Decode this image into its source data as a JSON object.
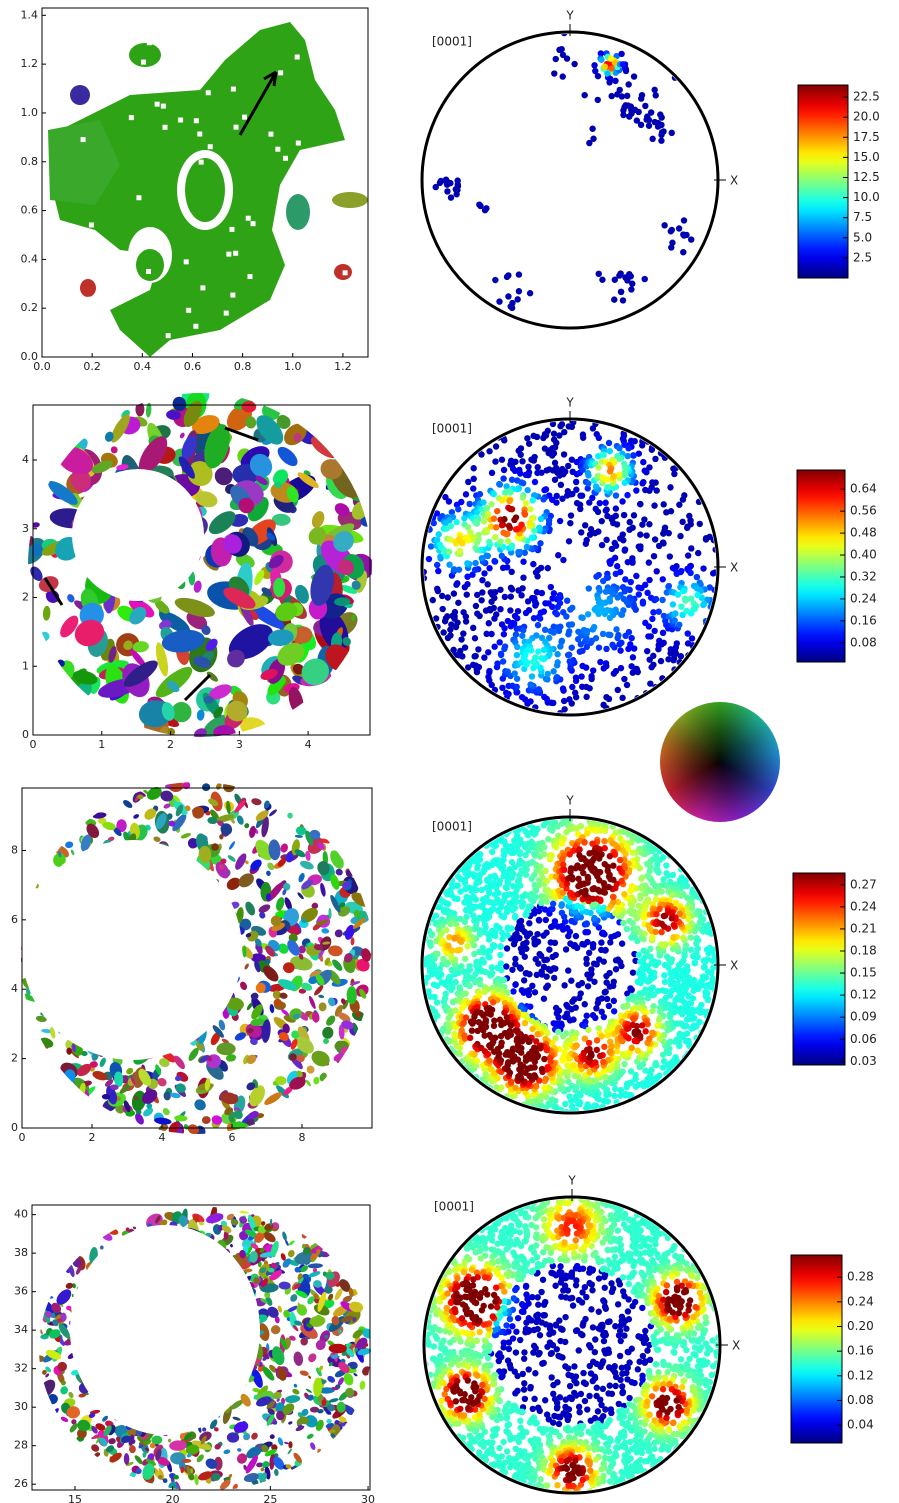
{
  "chart_data": [
    {
      "type": "orientation-map",
      "xlim": [
        0,
        1.3
      ],
      "ylim": [
        0,
        1.43
      ],
      "xticks": [
        {
          "value": 0,
          "label": "0.0"
        },
        0.2,
        0.4,
        0.6,
        0.8,
        {
          "value": 1,
          "label": "1.0"
        },
        1.2
      ],
      "yticks": [
        {
          "value": 0,
          "label": "0.0"
        },
        0.2,
        0.4,
        0.6,
        0.8,
        {
          "value": 1,
          "label": "1.0"
        },
        1.2,
        1.4
      ]
    },
    {
      "type": "pole-figure",
      "title": "[0001]",
      "x_label": "X",
      "y_label": "Y"
    },
    {
      "type": "colorbar",
      "colormap": "jet",
      "clim": [
        0,
        24
      ],
      "ticks": [
        2.5,
        {
          "value": 5,
          "label": "5.0"
        },
        7.5,
        {
          "value": 10,
          "label": "10.0"
        },
        12.5,
        {
          "value": 15,
          "label": "15.0"
        },
        17.5,
        {
          "value": 20,
          "label": "20.0"
        },
        22.5
      ]
    },
    {
      "type": "orientation-map",
      "xlim": [
        0,
        4.9
      ],
      "ylim": [
        0,
        4.8
      ],
      "xticks": [
        0,
        1,
        2,
        3,
        4
      ],
      "yticks": [
        0,
        1,
        2,
        3,
        4
      ]
    },
    {
      "type": "pole-figure",
      "title": "[0001]",
      "x_label": "X",
      "y_label": "Y"
    },
    {
      "type": "colorbar",
      "colormap": "jet",
      "clim": [
        0.01,
        0.71
      ],
      "ticks": [
        0.08,
        0.16,
        0.24,
        0.32,
        {
          "value": 0.4,
          "label": "0.40"
        },
        0.48,
        0.56,
        0.64
      ]
    },
    {
      "type": "orientation-map",
      "xlim": [
        0,
        10
      ],
      "ylim": [
        0,
        9.8
      ],
      "xticks": [
        0,
        2,
        4,
        6,
        8
      ],
      "yticks": [
        0,
        2,
        4,
        6,
        8
      ]
    },
    {
      "type": "pole-figure",
      "title": "[0001]",
      "x_label": "X",
      "y_label": "Y"
    },
    {
      "type": "colorbar",
      "colormap": "jet",
      "clim": [
        0.025,
        0.286
      ],
      "ticks": [
        0.03,
        0.06,
        0.09,
        0.12,
        0.15,
        0.18,
        0.21,
        0.24,
        0.27
      ]
    },
    {
      "type": "orientation-map",
      "xlim": [
        12.8,
        30.1
      ],
      "ylim": [
        25.7,
        40.5
      ],
      "xticks": [
        15,
        20,
        25,
        30
      ],
      "yticks": [
        26,
        28,
        30,
        32,
        34,
        36,
        38,
        40
      ]
    },
    {
      "type": "pole-figure",
      "title": "[0001]",
      "x_label": "X",
      "y_label": "Y"
    },
    {
      "type": "colorbar",
      "colormap": "jet",
      "clim": [
        0.011,
        0.316
      ],
      "ticks": [
        0.04,
        0.08,
        0.12,
        0.16,
        {
          "value": 0.2,
          "label": "0.20"
        },
        0.24,
        0.28
      ]
    }
  ]
}
